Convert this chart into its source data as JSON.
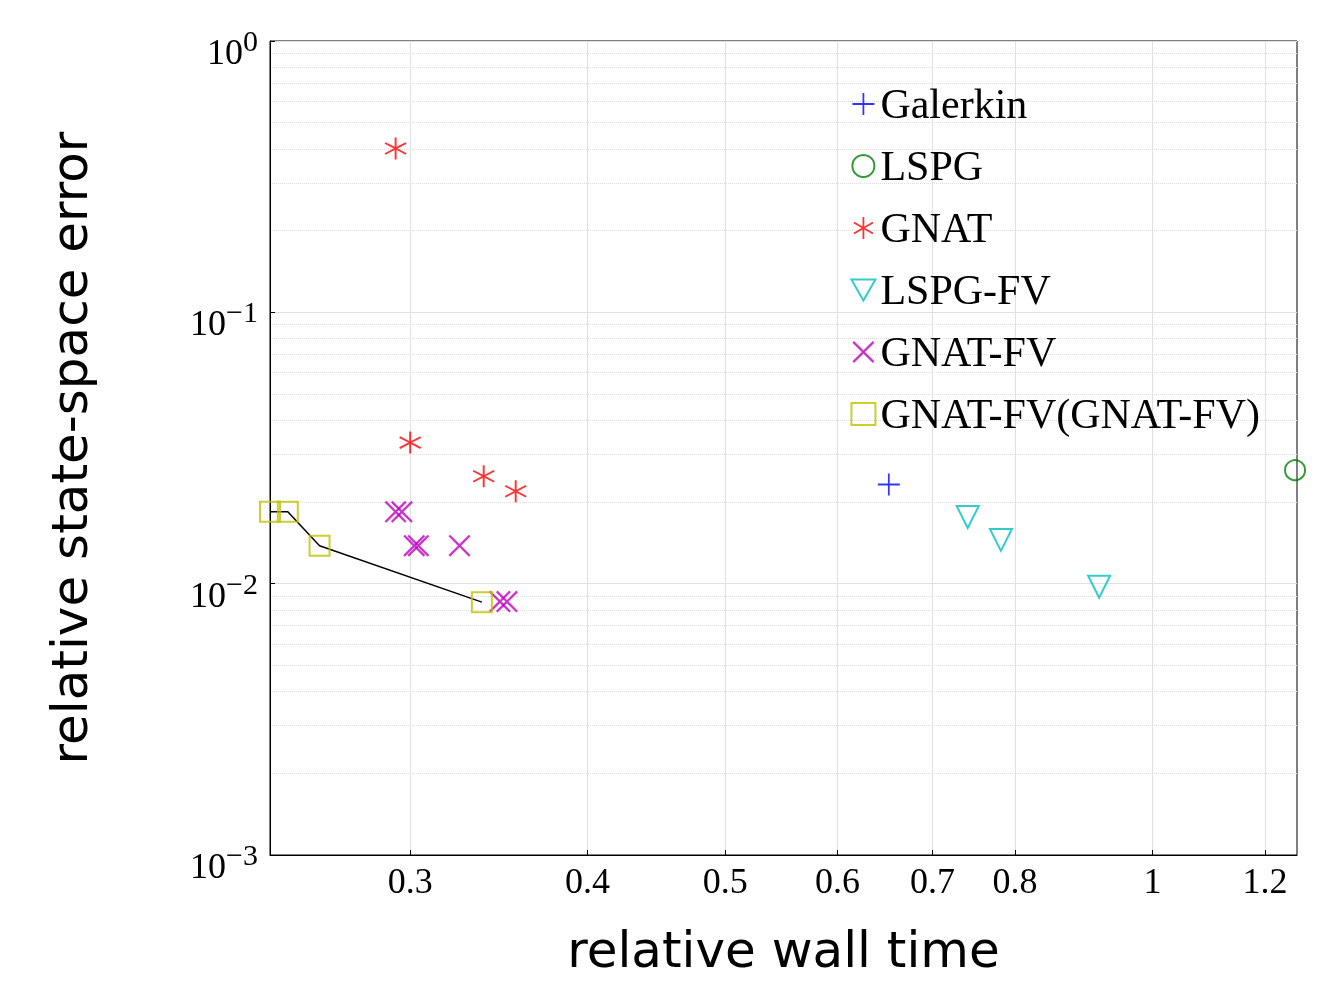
{
  "chart_data": {
    "type": "scatter",
    "xlabel": "relative wall time",
    "ylabel": "relative state-space error",
    "log": "xy",
    "grid": true,
    "legend": "top right",
    "xlim": [
      0.239,
      1.264
    ],
    "ylim": [
      0.001,
      1
    ],
    "xticks": [
      0.3,
      0.4,
      0.5,
      0.6,
      0.7,
      0.8,
      1,
      1.2
    ],
    "yticks": [
      {
        "value": 0.001,
        "label": "10$^{−3}$"
      },
      {
        "value": 0.01,
        "label": "10$^{−2}$"
      },
      {
        "value": 0.1,
        "label": "10$^{−1}$"
      },
      {
        "value": 1,
        "label": "10$^{0}$"
      }
    ],
    "series": [
      {
        "name": "Galerkin",
        "color": "#0000ff",
        "marker": "plus",
        "x": [
          0.652
        ],
        "values": [
          0.0232
        ]
      },
      {
        "name": "LSPG",
        "color": "#008000",
        "marker": "circle",
        "x": [
          1.26
        ],
        "values": [
          0.0262
        ]
      },
      {
        "name": "GNAT",
        "color": "#ff0000",
        "marker": "star",
        "x": [
          0.293,
          0.3,
          0.338,
          0.356
        ],
        "values": [
          0.402,
          0.0331,
          0.0249,
          0.0219
        ]
      },
      {
        "name": "LSPG-FV",
        "color": "#00bfbf",
        "marker": "triangle-down",
        "x": [
          0.741,
          0.782,
          0.917
        ],
        "values": [
          0.0176,
          0.0145,
          0.00975
        ]
      },
      {
        "name": "GNAT-FV",
        "color": "#bf00bf",
        "marker": "cross",
        "x": [
          0.293,
          0.296,
          0.302,
          0.304,
          0.325,
          0.347,
          0.351
        ],
        "values": [
          0.0184,
          0.0184,
          0.0138,
          0.0138,
          0.0138,
          0.00859,
          0.00859
        ]
      },
      {
        "type": "line",
        "color": "#000000",
        "marker": "none",
        "x": [
          0.239,
          0.246,
          0.259,
          0.337
        ],
        "values": [
          0.0184,
          0.0184,
          0.0138,
          0.00855
        ]
      },
      {
        "name": "GNAT-FV(GNAT-FV)",
        "color": "#bfbf00",
        "marker": "square",
        "x": [
          0.239,
          0.246,
          0.259,
          0.337
        ],
        "values": [
          0.0184,
          0.0184,
          0.0138,
          0.00855
        ]
      }
    ]
  }
}
